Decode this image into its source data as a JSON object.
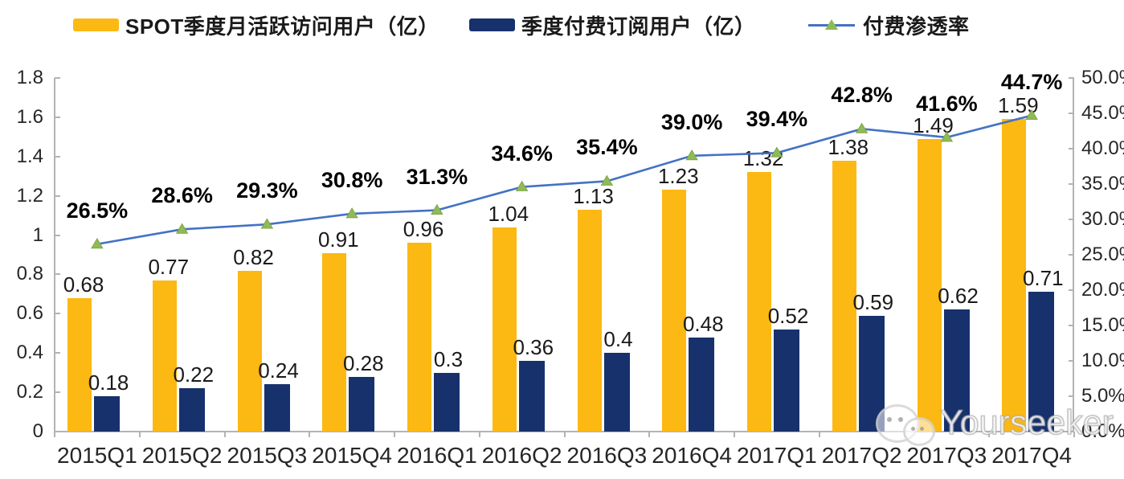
{
  "legend": {
    "items": [
      {
        "label": "SPOT季度月活跃访问用户（亿）",
        "swatch": "bar",
        "color": "#FCB813"
      },
      {
        "label": "季度付费订阅用户（亿）",
        "swatch": "bar",
        "color": "#17316D"
      },
      {
        "label": "付费渗透率",
        "swatch": "line-triangle",
        "color": "#4472C4",
        "marker_color": "#8FBA55"
      }
    ]
  },
  "chart_data": {
    "type": "combo-bar-line",
    "categories": [
      "2015Q1",
      "2015Q2",
      "2015Q3",
      "2015Q4",
      "2016Q1",
      "2016Q2",
      "2016Q3",
      "2016Q4",
      "2017Q1",
      "2017Q2",
      "2017Q3",
      "2017Q4"
    ],
    "series": [
      {
        "name": "SPOT季度月活跃访问用户（亿）",
        "type": "bar",
        "color": "#FCB813",
        "values": [
          0.68,
          0.77,
          0.82,
          0.91,
          0.96,
          1.04,
          1.13,
          1.23,
          1.32,
          1.38,
          1.49,
          1.59
        ],
        "labels": [
          "0.68",
          "0.77",
          "0.82",
          "0.91",
          "0.96",
          "1.04",
          "1.13",
          "1.23",
          "1.32",
          "1.38",
          "1.49",
          "1.59"
        ],
        "axis": "left"
      },
      {
        "name": "季度付费订阅用户（亿）",
        "type": "bar",
        "color": "#17316D",
        "values": [
          0.18,
          0.22,
          0.24,
          0.28,
          0.3,
          0.36,
          0.4,
          0.48,
          0.52,
          0.59,
          0.62,
          0.71
        ],
        "labels": [
          "0.18",
          "0.22",
          "0.24",
          "0.28",
          "0.3",
          "0.36",
          "0.4",
          "0.48",
          "0.52",
          "0.59",
          "0.62",
          "0.71"
        ],
        "axis": "left"
      },
      {
        "name": "付费渗透率",
        "type": "line",
        "color": "#4472C4",
        "marker": "triangle",
        "marker_color": "#8FBA55",
        "values": [
          26.5,
          28.6,
          29.3,
          30.8,
          31.3,
          34.6,
          35.4,
          39.0,
          39.4,
          42.8,
          41.6,
          44.7
        ],
        "labels": [
          "26.5%",
          "28.6%",
          "29.3%",
          "30.8%",
          "31.3%",
          "34.6%",
          "35.4%",
          "39.0%",
          "39.4%",
          "42.8%",
          "41.6%",
          "44.7%"
        ],
        "axis": "right"
      }
    ],
    "left_axis": {
      "min": 0,
      "max": 1.8,
      "ticks": [
        "0",
        "0.2",
        "0.4",
        "0.6",
        "0.8",
        "1",
        "1.2",
        "1.4",
        "1.6",
        "1.8"
      ]
    },
    "right_axis": {
      "min": 0,
      "max": 50,
      "ticks": [
        "0.0%",
        "5.0%",
        "10.0%",
        "15.0%",
        "20.0%",
        "25.0%",
        "30.0%",
        "35.0%",
        "40.0%",
        "45.0%",
        "50.0%"
      ]
    },
    "grid": false,
    "legend_position": "top",
    "title": ""
  },
  "watermark": {
    "brand": "Yourseeker",
    "icon": "wechat-icon"
  }
}
